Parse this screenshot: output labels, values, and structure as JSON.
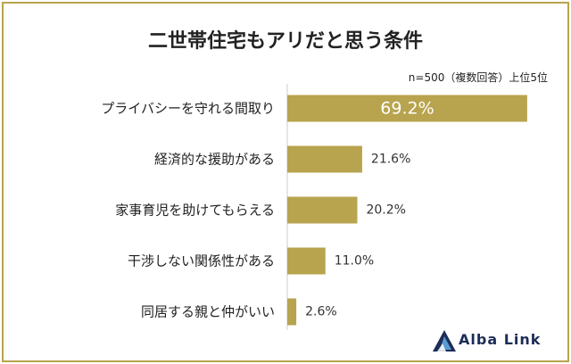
{
  "title": "二世帯住宅もアリだと思う条件",
  "note": "n=500（複数回答）上位5位",
  "brand": "Alba Link",
  "colors": {
    "bar": "#b8a44e",
    "axis": "#cccccc",
    "frame": "#b8a44e",
    "brand": "#1d2d57"
  },
  "chart_data": {
    "type": "bar",
    "orientation": "horizontal",
    "categories": [
      "プライバシーを守れる間取り",
      "経済的な援助がある",
      "家事育児を助けてもらえる",
      "干渉しない関係性がある",
      "同居する親と仲がいい"
    ],
    "values": [
      69.2,
      21.6,
      20.2,
      11.0,
      2.6
    ],
    "value_labels": [
      "69.2%",
      "21.6%",
      "20.2%",
      "11.0%",
      "2.6%"
    ],
    "xlim": [
      0,
      70
    ]
  }
}
